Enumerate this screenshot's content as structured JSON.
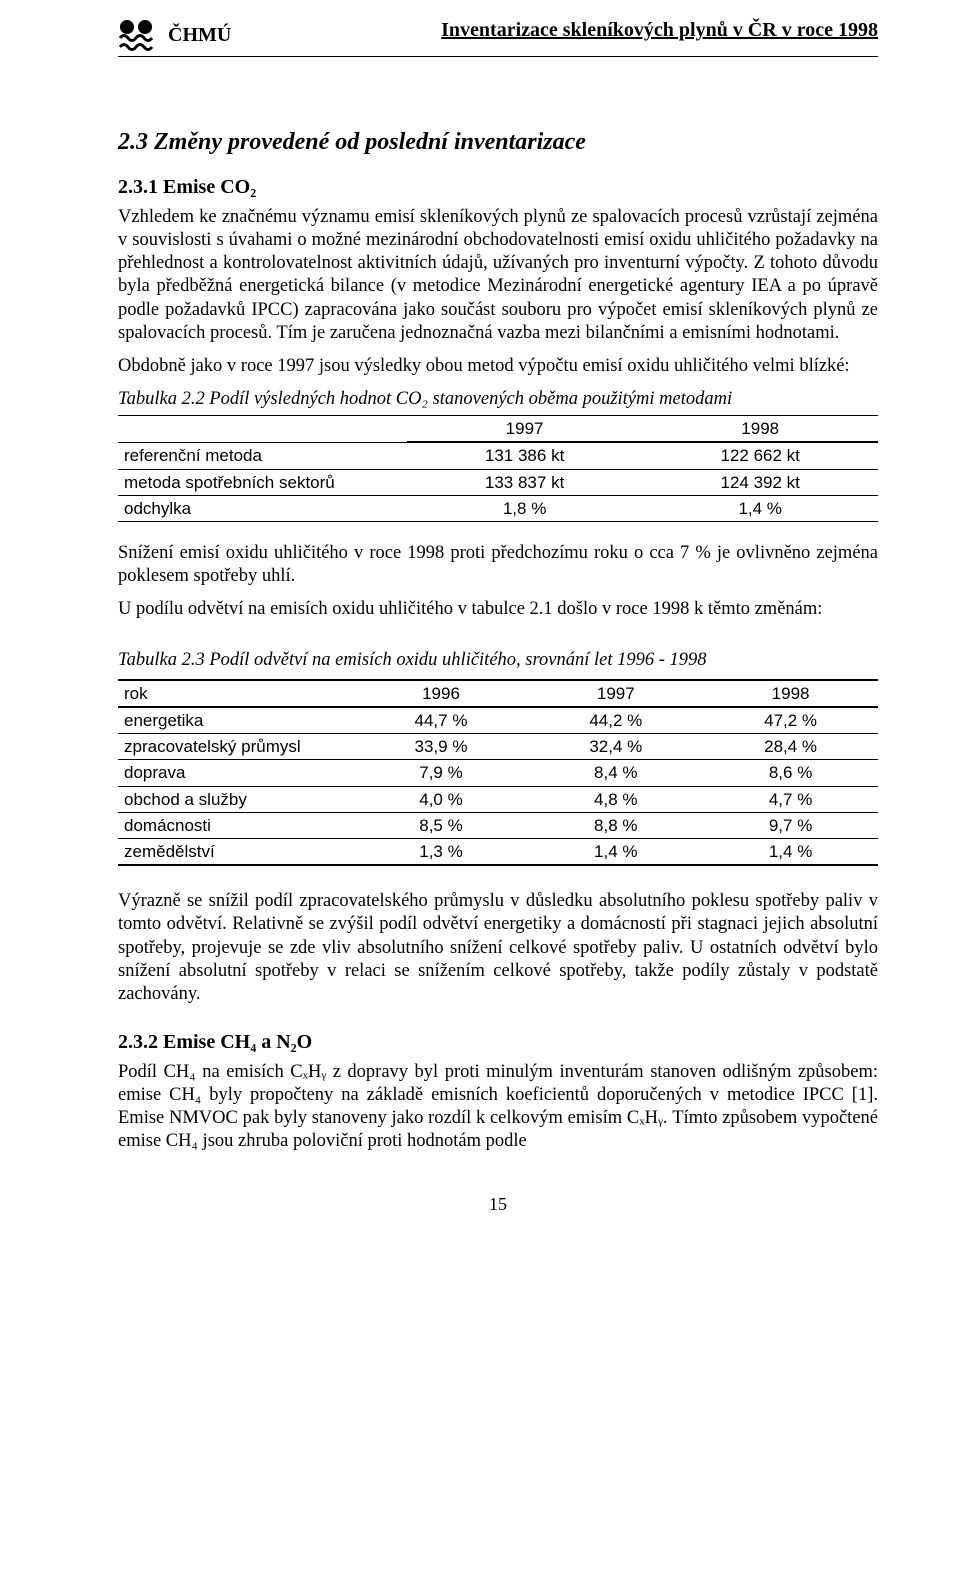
{
  "header": {
    "org": "ČHMÚ",
    "title": "Inventarizace skleníkových plynů v ČR v roce 1998"
  },
  "section_2_3": {
    "heading": "2.3 Změny provedené od poslední inventarizace",
    "sub_2_3_1": {
      "heading": "2.3.1  Emise CO₂",
      "para1": "Vzhledem ke značnému významu emisí skleníkových plynů ze spalovacích procesů vzrůstají zejména v souvislosti s úvahami o možné mezinárodní obchodovatelnosti emisí oxidu uhličitého požadavky na přehlednost a kontrolovatelnost aktivitních údajů, užívaných pro inventurní výpočty. Z tohoto důvodu byla předběžná energetická bilance (v metodice Mezinárodní energetické agentury IEA a po úpravě podle požadavků IPCC) zapracována jako součást souboru pro výpočet emisí skleníkových plynů ze spalovacích procesů. Tím je zaručena jednoznačná vazba mezi bilančními a emisními hodnotami.",
      "para2": "Obdobně jako v roce 1997 jsou výsledky obou metod výpočtu emisí oxidu uhličitého velmi blízké:"
    },
    "table_2_2": {
      "caption": "Tabulka 2.2  Podíl výsledných hodnot CO₂ stanovených oběma použitými metodami",
      "columns": [
        "",
        "1997",
        "1998"
      ],
      "rows": [
        [
          "referenční metoda",
          "131 386 kt",
          "122 662 kt"
        ],
        [
          "metoda spotřebních sektorů",
          "133 837 kt",
          "124 392 kt"
        ],
        [
          "odchylka",
          "1,8 %",
          "1,4 %"
        ]
      ],
      "col_widths": [
        "38%",
        "31%",
        "31%"
      ]
    },
    "para_after_t22_1": "Snížení emisí oxidu uhličitého v roce 1998 proti předchozímu roku o cca 7 % je ovlivněno zejména poklesem spotřeby uhlí.",
    "para_after_t22_2": "U podílu odvětví na emisích oxidu uhličitého v tabulce 2.1 došlo v roce 1998 k těmto změnám:",
    "table_2_3": {
      "caption": "Tabulka 2.3  Podíl odvětví na emisích oxidu uhličitého, srovnání let 1996 - 1998",
      "columns": [
        "rok",
        "1996",
        "1997",
        "1998"
      ],
      "rows": [
        [
          "energetika",
          "44,7 %",
          "44,2 %",
          "47,2 %"
        ],
        [
          "zpracovatelský průmysl",
          "33,9 %",
          "32,4 %",
          "28,4 %"
        ],
        [
          "doprava",
          "7,9 %",
          "8,4 %",
          "8,6 %"
        ],
        [
          "obchod a služby",
          "4,0 %",
          "4,8 %",
          "4,7 %"
        ],
        [
          "domácnosti",
          "8,5 %",
          "8,8 %",
          "9,7 %"
        ],
        [
          "zemědělství",
          "1,3 %",
          "1,4 %",
          "1,4 %"
        ]
      ],
      "col_widths": [
        "31%",
        "23%",
        "23%",
        "23%"
      ]
    },
    "para_after_t23": "Výrazně se snížil podíl zpracovatelského průmyslu v důsledku absolutního poklesu spotřeby paliv v tomto odvětví. Relativně se zvýšil podíl odvětví energetiky a domácností při stagnaci jejich absolutní spotřeby, projevuje se zde vliv absolutního snížení celkové spotřeby paliv. U ostatních odvětví bylo snížení absolutní spotřeby v relaci se snížením celkové spotřeby, takže podíly zůstaly v podstatě zachovány.",
    "sub_2_3_2": {
      "heading": "2.3.2  Emise CH₄ a N₂O",
      "para1": "Podíl CH₄ na emisích CₓHᵧ z dopravy byl proti minulým inventurám stanoven odlišným způsobem: emise CH₄ byly propočteny na základě emisních koeficientů doporučených v metodice IPCC [1]. Emise NMVOC pak byly stanoveny jako rozdíl k celkovým emisím CₓHᵧ. Tímto způsobem vypočtené emise CH₄ jsou zhruba poloviční proti hodnotám podle"
    }
  },
  "page_number": "15"
}
